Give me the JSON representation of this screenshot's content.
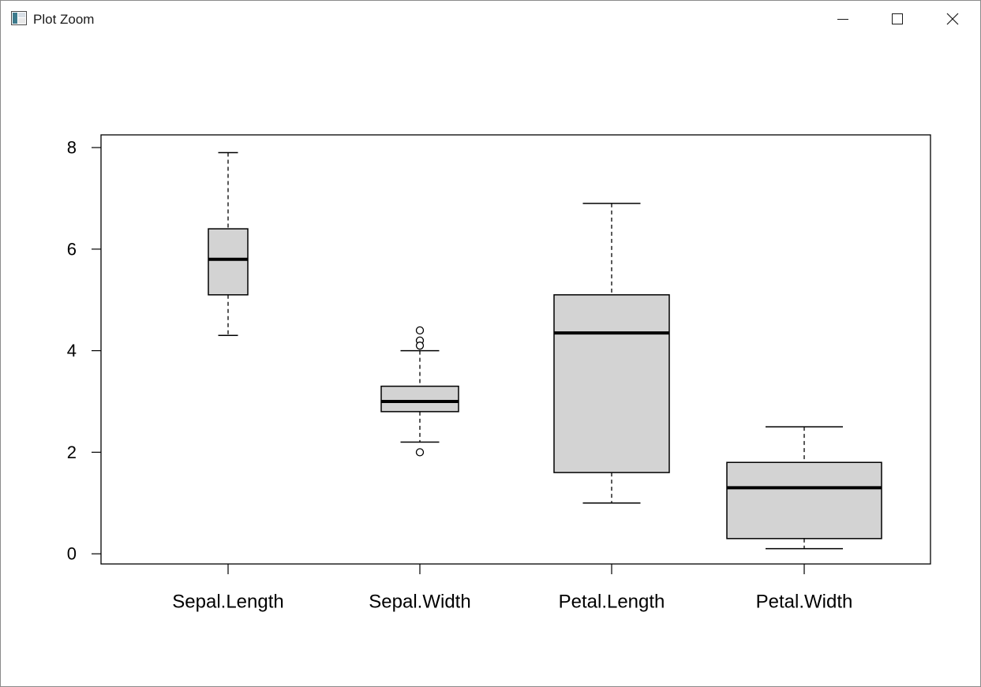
{
  "window": {
    "title": "Plot Zoom",
    "controls": {
      "minimize_icon": "minimize-icon",
      "maximize_icon": "maximize-icon",
      "close_icon": "close-icon"
    }
  },
  "chart_data": {
    "type": "boxplot",
    "title": "",
    "xlabel": "",
    "ylabel": "",
    "ylim": [
      -0.2,
      8.25
    ],
    "y_ticks": [
      0,
      2,
      4,
      6,
      8
    ],
    "grid": false,
    "legend": "none",
    "box_fill": "#d3d3d3",
    "categories": [
      "Sepal.Length",
      "Sepal.Width",
      "Petal.Length",
      "Petal.Width"
    ],
    "boxes": [
      {
        "category": "Sepal.Length",
        "whisker_low": 4.3,
        "q1": 5.1,
        "median": 5.8,
        "q3": 6.4,
        "whisker_high": 7.9,
        "outliers": []
      },
      {
        "category": "Sepal.Width",
        "whisker_low": 2.2,
        "q1": 2.8,
        "median": 3.0,
        "q3": 3.3,
        "whisker_high": 4.0,
        "outliers": [
          4.4,
          4.2,
          4.1,
          2.0
        ]
      },
      {
        "category": "Petal.Length",
        "whisker_low": 1.0,
        "q1": 1.6,
        "median": 4.35,
        "q3": 5.1,
        "whisker_high": 6.9,
        "outliers": []
      },
      {
        "category": "Petal.Width",
        "whisker_low": 0.1,
        "q1": 0.3,
        "median": 1.3,
        "q3": 1.8,
        "whisker_high": 2.5,
        "outliers": []
      }
    ]
  }
}
